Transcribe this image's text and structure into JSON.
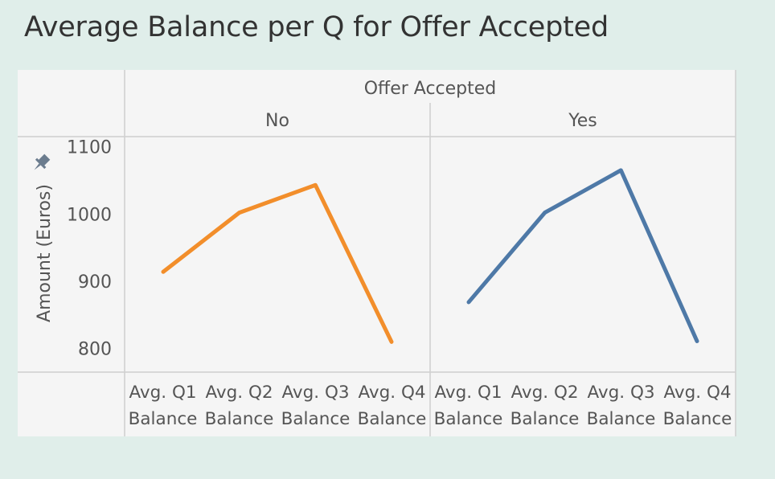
{
  "chart_data": {
    "type": "line",
    "title": "Average Balance per Q for Offer Accepted",
    "column_header": "Offer Accepted",
    "ylabel": "Amount (Euros)",
    "ylim": [
      765,
      1115
    ],
    "yticks": [
      800,
      900,
      1000,
      1100
    ],
    "categories": [
      "Avg. Q1 Balance",
      "Avg. Q2 Balance",
      "Avg. Q3 Balance",
      "Avg. Q4 Balance"
    ],
    "category_lines": [
      [
        "Avg. Q1",
        "Balance"
      ],
      [
        "Avg. Q2",
        "Balance"
      ],
      [
        "Avg. Q3",
        "Balance"
      ],
      [
        "Avg. Q4",
        "Balance"
      ]
    ],
    "panels": [
      {
        "name": "No",
        "color": "#f28e2b",
        "values": [
          914,
          1002,
          1043,
          810
        ]
      },
      {
        "name": "Yes",
        "color": "#4e79a7",
        "values": [
          869,
          1002,
          1065,
          811
        ]
      }
    ],
    "grid": false,
    "legend": "none"
  },
  "icons": {
    "pin": "pin-icon"
  }
}
